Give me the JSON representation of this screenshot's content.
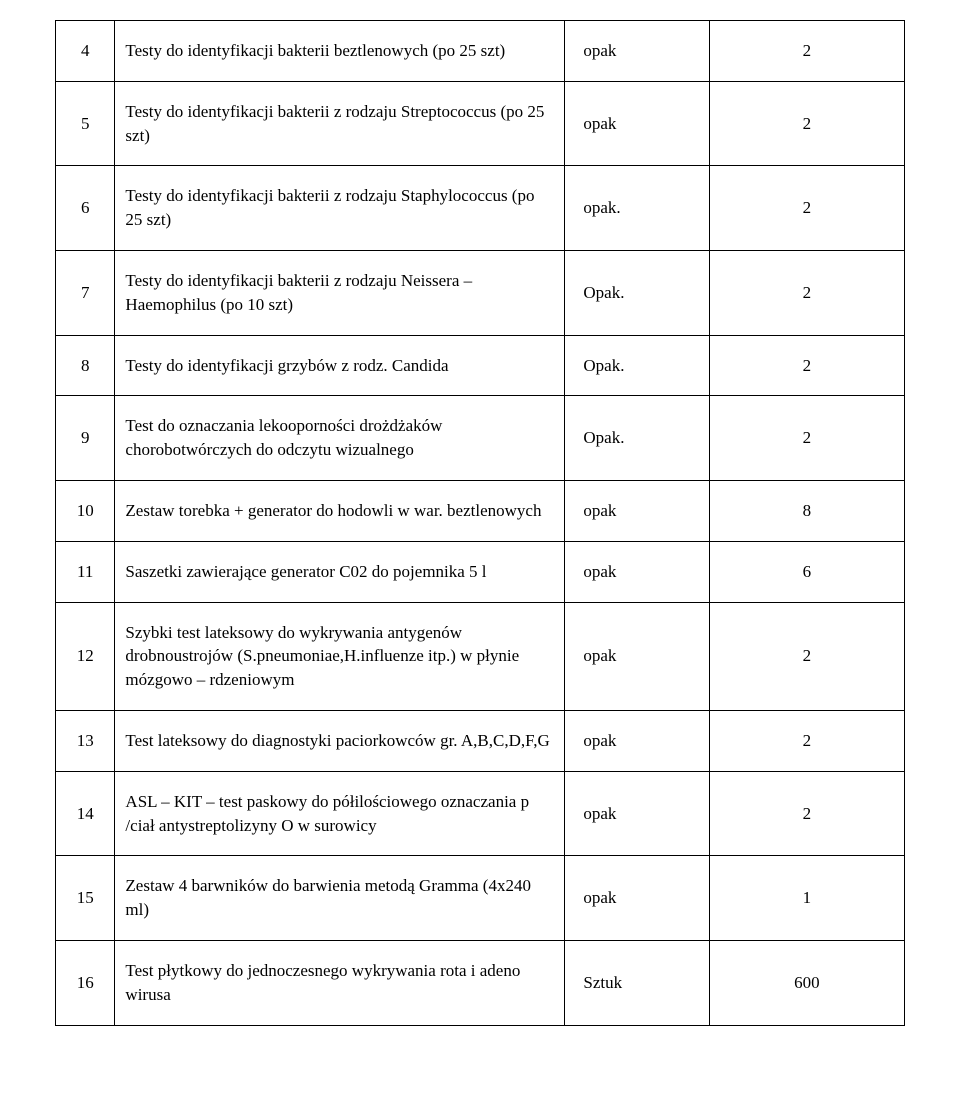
{
  "table": {
    "rows": [
      {
        "num": "4",
        "desc": "Testy do identyfikacji bakterii beztlenowych (po 25 szt)",
        "unit": "opak",
        "qty": "2"
      },
      {
        "num": "5",
        "desc": "Testy do identyfikacji bakterii z rodzaju Streptococcus (po 25 szt)",
        "unit": "opak",
        "qty": "2"
      },
      {
        "num": "6",
        "desc": "Testy do identyfikacji bakterii z rodzaju Staphylococcus (po 25 szt)",
        "unit": "opak.",
        "qty": "2"
      },
      {
        "num": "7",
        "desc": "Testy do identyfikacji bakterii z rodzaju Neissera – Haemophilus (po 10 szt)",
        "unit": "Opak.",
        "qty": "2"
      },
      {
        "num": "8",
        "desc": "Testy do identyfikacji grzybów z rodz. Candida",
        "unit": "Opak.",
        "qty": "2"
      },
      {
        "num": "9",
        "desc": "Test do oznaczania lekooporności drożdżaków chorobotwórczych do odczytu wizualnego",
        "unit": "Opak.",
        "qty": "2"
      },
      {
        "num": "10",
        "desc": "Zestaw torebka + generator do hodowli w war. beztlenowych",
        "unit": "opak",
        "qty": "8"
      },
      {
        "num": "11",
        "desc": "Saszetki zawierające generator C02 do pojemnika 5 l",
        "unit": "opak",
        "qty": "6"
      },
      {
        "num": "12",
        "desc": "Szybki test lateksowy do wykrywania antygenów drobnoustrojów (S.pneumoniae,H.influenze itp.) w płynie mózgowo – rdzeniowym",
        "unit": "opak",
        "qty": "2"
      },
      {
        "num": "13",
        "desc": "Test lateksowy do diagnostyki paciorkowców gr. A,B,C,D,F,G",
        "unit": "opak",
        "qty": "2"
      },
      {
        "num": "14",
        "desc": "ASL – KIT – test paskowy do półilościowego oznaczania p /ciał antystreptolizyny O w surowicy",
        "unit": "opak",
        "qty": "2"
      },
      {
        "num": "15",
        "desc": "Zestaw 4 barwników do barwienia metodą Gramma (4x240 ml)",
        "unit": "opak",
        "qty": "1"
      },
      {
        "num": "16",
        "desc": "Test płytkowy do jednoczesnego wykrywania rota i adeno wirusa",
        "unit": "Sztuk",
        "qty": "600"
      }
    ]
  }
}
